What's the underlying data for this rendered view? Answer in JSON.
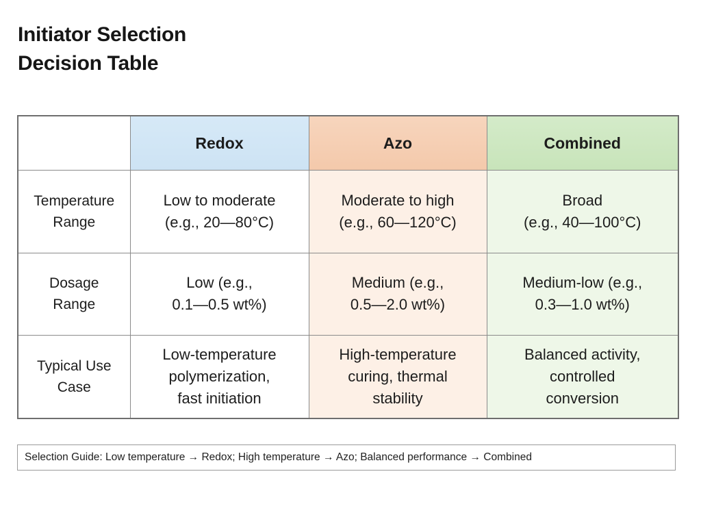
{
  "title": {
    "line1": "Initiator Selection",
    "line2": "Decision Table"
  },
  "table": {
    "columns": [
      "Redox",
      "Azo",
      "Combined"
    ],
    "rows": [
      {
        "label": [
          "Temperature",
          "Range"
        ],
        "cells": [
          [
            "Low to moderate",
            "(e.g., 20—80°C)"
          ],
          [
            "Moderate to high",
            "(e.g., 60—120°C)"
          ],
          [
            "Broad",
            "(e.g., 40—100°C)"
          ]
        ]
      },
      {
        "label": [
          "Dosage",
          "Range"
        ],
        "cells": [
          [
            "Low (e.g.,",
            "0.1—0.5 wt%)"
          ],
          [
            "Medium (e.g.,",
            "0.5—2.0 wt%)"
          ],
          [
            "Medium-low (e.g.,",
            "0.3—1.0 wt%)"
          ]
        ]
      },
      {
        "label": [
          "Typical Use",
          "Case"
        ],
        "cells": [
          [
            "Low-temperature",
            "polymerization,",
            "fast initiation"
          ],
          [
            "High-temperature",
            "curing, thermal",
            "stability"
          ],
          [
            "Balanced activity,",
            "controlled",
            "conversion"
          ]
        ]
      }
    ]
  },
  "guide": {
    "text": "Selection Guide: Low temperature → Redox; High temperature → Azo; Balanced performance → Combined"
  },
  "colors": {
    "redox": "#cde3f4",
    "azo": "#f4c9ab",
    "combined": "#c8e4ba",
    "border": "#8a8a8a"
  }
}
